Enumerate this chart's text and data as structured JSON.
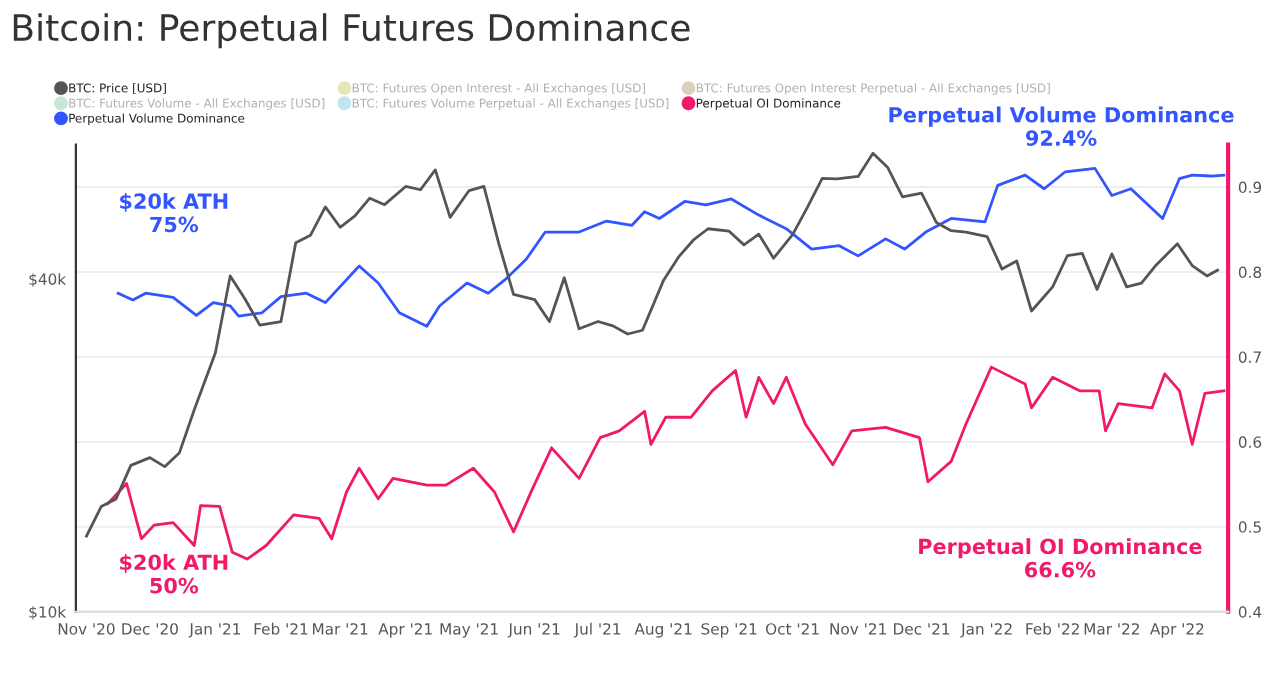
{
  "chart_data": {
    "type": "line",
    "title": "Bitcoin: Perpetual Futures Dominance",
    "xlim": [
      "2020-10-27",
      "2022-04-25"
    ],
    "xticks": [
      {
        "value": "2020-11-01",
        "label": "Nov '20"
      },
      {
        "value": "2020-12-01",
        "label": "Dec '20"
      },
      {
        "value": "2021-01-01",
        "label": "Jan '21"
      },
      {
        "value": "2021-02-01",
        "label": "Feb '21"
      },
      {
        "value": "2021-03-01",
        "label": "Mar '21"
      },
      {
        "value": "2021-04-01",
        "label": "Apr '21"
      },
      {
        "value": "2021-05-01",
        "label": "May '21"
      },
      {
        "value": "2021-06-01",
        "label": "Jun '21"
      },
      {
        "value": "2021-07-01",
        "label": "Jul '21"
      },
      {
        "value": "2021-08-01",
        "label": "Aug '21"
      },
      {
        "value": "2021-09-01",
        "label": "Sep '21"
      },
      {
        "value": "2021-10-01",
        "label": "Oct '21"
      },
      {
        "value": "2021-11-01",
        "label": "Nov '21"
      },
      {
        "value": "2021-12-01",
        "label": "Dec '21"
      },
      {
        "value": "2022-01-01",
        "label": "Jan '22"
      },
      {
        "value": "2022-02-01",
        "label": "Feb '22"
      },
      {
        "value": "2022-03-01",
        "label": "Mar '22"
      },
      {
        "value": "2022-04-01",
        "label": "Apr '22"
      }
    ],
    "log": "y",
    "ylim": [
      10000,
      70000
    ],
    "yticks": [
      {
        "value": 10000,
        "label": "$10k"
      },
      {
        "value": 40000,
        "label": "$40k"
      }
    ],
    "y2lim": [
      0.4,
      0.95
    ],
    "y2ticks": [
      0.4,
      0.5,
      0.6,
      0.7,
      0.8,
      0.9
    ],
    "grid": "y",
    "legend": "top",
    "marker": "none",
    "line_style": "solid",
    "series": [
      {
        "name": "BTC: Price [USD]",
        "color": "#555555",
        "x": [
          "2020-11-01",
          "2020-11-08",
          "2020-11-15",
          "2020-11-22",
          "2020-12-01",
          "2020-12-08",
          "2020-12-15",
          "2020-12-22",
          "2021-01-01",
          "2021-01-08",
          "2021-01-15",
          "2021-01-22",
          "2021-02-01",
          "2021-02-08",
          "2021-02-15",
          "2021-02-22",
          "2021-03-01",
          "2021-03-08",
          "2021-03-15",
          "2021-03-22",
          "2021-04-01",
          "2021-04-08",
          "2021-04-15",
          "2021-04-22",
          "2021-05-01",
          "2021-05-08",
          "2021-05-15",
          "2021-05-22",
          "2021-06-01",
          "2021-06-08",
          "2021-06-15",
          "2021-06-22",
          "2021-07-01",
          "2021-07-08",
          "2021-07-15",
          "2021-07-22",
          "2021-08-01",
          "2021-08-08",
          "2021-08-15",
          "2021-08-22",
          "2021-09-01",
          "2021-09-08",
          "2021-09-15",
          "2021-09-22",
          "2021-10-01",
          "2021-10-08",
          "2021-10-15",
          "2021-10-22",
          "2021-11-01",
          "2021-11-08",
          "2021-11-15",
          "2021-11-22",
          "2021-12-01",
          "2021-12-08",
          "2021-12-15",
          "2021-12-22",
          "2022-01-01",
          "2022-01-08",
          "2022-01-15",
          "2022-01-22",
          "2022-02-01",
          "2022-02-08",
          "2022-02-15",
          "2022-02-22",
          "2022-03-01",
          "2022-03-08",
          "2022-03-15",
          "2022-03-22",
          "2022-04-01",
          "2022-04-08",
          "2022-04-15",
          "2022-04-20"
        ],
        "values": [
          13700,
          15500,
          16000,
          18400,
          19000,
          18300,
          19400,
          23200,
          29400,
          40500,
          36800,
          33000,
          33500,
          46500,
          48000,
          54000,
          49600,
          52000,
          56000,
          54500,
          58800,
          58000,
          63000,
          51700,
          57800,
          58800,
          46400,
          37500,
          36700,
          33500,
          40200,
          32500,
          33500,
          32900,
          31800,
          32300,
          39800,
          43800,
          47000,
          49300,
          48800,
          46100,
          48200,
          43600,
          48100,
          53900,
          60800,
          60700,
          61300,
          67500,
          63600,
          56300,
          57200,
          50600,
          48900,
          48600,
          47700,
          41700,
          43100,
          35000,
          38700,
          44100,
          44500,
          38300,
          44400,
          38700,
          39300,
          42400,
          46300,
          42300,
          40500,
          41500
        ]
      },
      {
        "name": "BTC: Futures Volume - All Exchanges [USD]",
        "color": "#c6e8d6"
      },
      {
        "name": "Perpetual Volume Dominance",
        "color": "#3355ff",
        "axis": "y2",
        "x": [
          "2020-11-16",
          "2020-11-23",
          "2020-11-29",
          "2020-12-12",
          "2020-12-23",
          "2020-12-31",
          "2021-01-08",
          "2021-01-12",
          "2021-01-23",
          "2021-02-01",
          "2021-02-13",
          "2021-02-22",
          "2021-03-10",
          "2021-03-19",
          "2021-03-29",
          "2021-04-11",
          "2021-04-17",
          "2021-04-30",
          "2021-05-10",
          "2021-05-18",
          "2021-05-28",
          "2021-06-06",
          "2021-06-22",
          "2021-07-05",
          "2021-07-17",
          "2021-07-23",
          "2021-07-30",
          "2021-08-11",
          "2021-08-21",
          "2021-09-02",
          "2021-09-15",
          "2021-09-28",
          "2021-10-10",
          "2021-10-23",
          "2021-11-01",
          "2021-11-14",
          "2021-11-23",
          "2021-12-03",
          "2021-12-15",
          "2021-12-31",
          "2022-01-06",
          "2022-01-19",
          "2022-01-28",
          "2022-02-07",
          "2022-02-21",
          "2022-03-01",
          "2022-03-10",
          "2022-03-25",
          "2022-04-02",
          "2022-04-08",
          "2022-04-17",
          "2022-04-23"
        ],
        "values": [
          0.775,
          0.767,
          0.775,
          0.77,
          0.749,
          0.764,
          0.76,
          0.748,
          0.752,
          0.771,
          0.775,
          0.764,
          0.807,
          0.787,
          0.752,
          0.736,
          0.76,
          0.787,
          0.775,
          0.791,
          0.815,
          0.847,
          0.847,
          0.86,
          0.855,
          0.871,
          0.863,
          0.883,
          0.879,
          0.886,
          0.867,
          0.851,
          0.827,
          0.831,
          0.819,
          0.839,
          0.827,
          0.847,
          0.863,
          0.859,
          0.902,
          0.914,
          0.898,
          0.918,
          0.922,
          0.89,
          0.898,
          0.863,
          0.91,
          0.914,
          0.913,
          0.914
        ]
      },
      {
        "name": "BTC: Futures Open Interest - All Exchanges [USD]",
        "color": "#e6e6b8"
      },
      {
        "name": "BTC: Futures Volume Perpetual - All Exchanges [USD]",
        "color": "#bfe6ee"
      },
      {
        "name": "BTC: Futures Open Interest Perpetual - All Exchanges [USD]",
        "color": "#ddd0bf"
      },
      {
        "name": "Perpetual OI Dominance",
        "color": "#f0196a",
        "axis": "y2",
        "x": [
          "2020-11-11",
          "2020-11-20",
          "2020-11-27",
          "2020-12-03",
          "2020-12-12",
          "2020-12-22",
          "2020-12-25",
          "2021-01-03",
          "2021-01-09",
          "2021-01-16",
          "2021-01-25",
          "2021-02-07",
          "2021-02-19",
          "2021-02-25",
          "2021-03-04",
          "2021-03-10",
          "2021-03-19",
          "2021-03-26",
          "2021-04-11",
          "2021-04-20",
          "2021-05-03",
          "2021-05-13",
          "2021-05-22",
          "2021-05-31",
          "2021-06-09",
          "2021-06-22",
          "2021-07-02",
          "2021-07-11",
          "2021-07-23",
          "2021-07-26",
          "2021-08-02",
          "2021-08-14",
          "2021-08-24",
          "2021-09-04",
          "2021-09-09",
          "2021-09-15",
          "2021-09-22",
          "2021-09-28",
          "2021-10-07",
          "2021-10-20",
          "2021-10-29",
          "2021-11-14",
          "2021-11-30",
          "2021-12-04",
          "2021-12-15",
          "2021-12-22",
          "2022-01-03",
          "2022-01-19",
          "2022-01-22",
          "2022-02-01",
          "2022-02-14",
          "2022-02-23",
          "2022-02-26",
          "2022-03-04",
          "2022-03-20",
          "2022-03-26",
          "2022-04-02",
          "2022-04-08",
          "2022-04-14",
          "2022-04-23"
        ],
        "values": [
          0.527,
          0.551,
          0.486,
          0.502,
          0.505,
          0.478,
          0.525,
          0.524,
          0.47,
          0.462,
          0.478,
          0.514,
          0.51,
          0.486,
          0.541,
          0.569,
          0.533,
          0.557,
          0.549,
          0.549,
          0.569,
          0.541,
          0.494,
          0.545,
          0.593,
          0.557,
          0.605,
          0.613,
          0.636,
          0.597,
          0.629,
          0.629,
          0.66,
          0.684,
          0.629,
          0.676,
          0.645,
          0.676,
          0.621,
          0.573,
          0.613,
          0.617,
          0.605,
          0.553,
          0.577,
          0.621,
          0.688,
          0.668,
          0.64,
          0.676,
          0.66,
          0.66,
          0.613,
          0.645,
          0.64,
          0.68,
          0.66,
          0.597,
          0.657,
          0.66
        ]
      }
    ],
    "annotations": [
      "$20k ATH\n75%",
      "$20k ATH\n50%",
      "Perpetual Volume Dominance\n92.4%",
      "Perpetual OI Dominance\n66.6%"
    ]
  }
}
